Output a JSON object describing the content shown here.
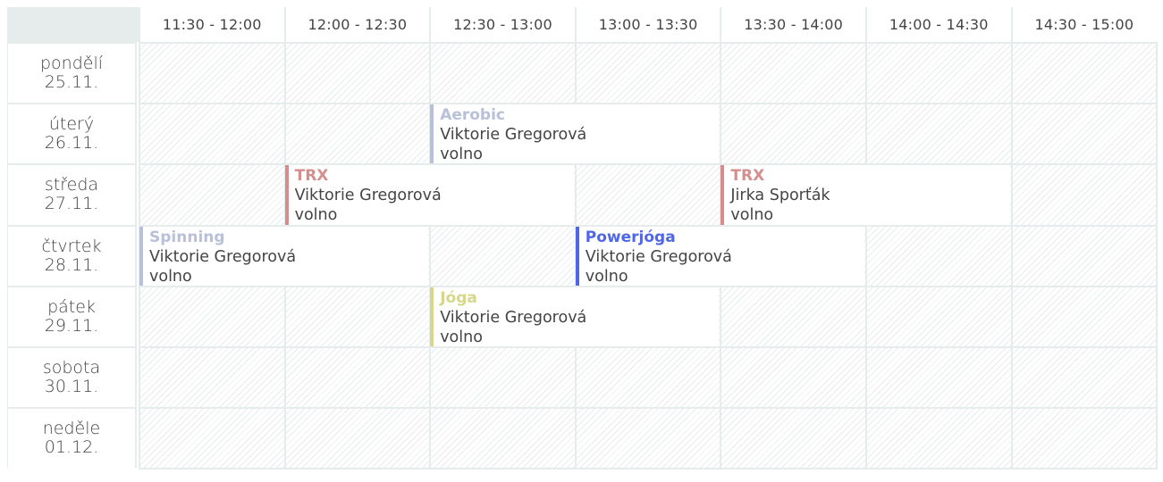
{
  "time_slots": [
    "11:30 - 12:00",
    "12:00 - 12:30",
    "12:30 - 13:00",
    "13:00 - 13:30",
    "13:30 - 14:00",
    "14:00 - 14:30",
    "14:30 - 15:00"
  ],
  "days": [
    {
      "name": "pondělí",
      "date": "25.11."
    },
    {
      "name": "úterý",
      "date": "26.11."
    },
    {
      "name": "středa",
      "date": "27.11."
    },
    {
      "name": "čtvrtek",
      "date": "28.11."
    },
    {
      "name": "pátek",
      "date": "29.11."
    },
    {
      "name": "sobota",
      "date": "30.11."
    },
    {
      "name": "neděle",
      "date": "01.12."
    }
  ],
  "events": [
    {
      "day": 1,
      "start": "12:30",
      "end": "13:30",
      "title": "Aerobic",
      "instructor": "Viktorie Gregorová",
      "status": "volno",
      "color": "#b8c0da"
    },
    {
      "day": 2,
      "start": "12:00",
      "end": "13:00",
      "title": "TRX",
      "instructor": "Viktorie Gregorová",
      "status": "volno",
      "color": "#d68d8d"
    },
    {
      "day": 2,
      "start": "13:30",
      "end": "14:30",
      "title": "TRX",
      "instructor": "Jirka Sporťák",
      "status": "volno",
      "color": "#d68d8d"
    },
    {
      "day": 3,
      "start": "11:30",
      "end": "12:30",
      "title": "Spinning",
      "instructor": "Viktorie Gregorová",
      "status": "volno",
      "color": "#b8c0da"
    },
    {
      "day": 3,
      "start": "13:00",
      "end": "14:00",
      "title": "Powerjóga",
      "instructor": "Viktorie Gregorová",
      "status": "volno",
      "color": "#4f66e6"
    },
    {
      "day": 4,
      "start": "12:30",
      "end": "13:30",
      "title": "Jóga",
      "instructor": "Viktorie Gregorová",
      "status": "volno",
      "color": "#d8d68a"
    }
  ]
}
